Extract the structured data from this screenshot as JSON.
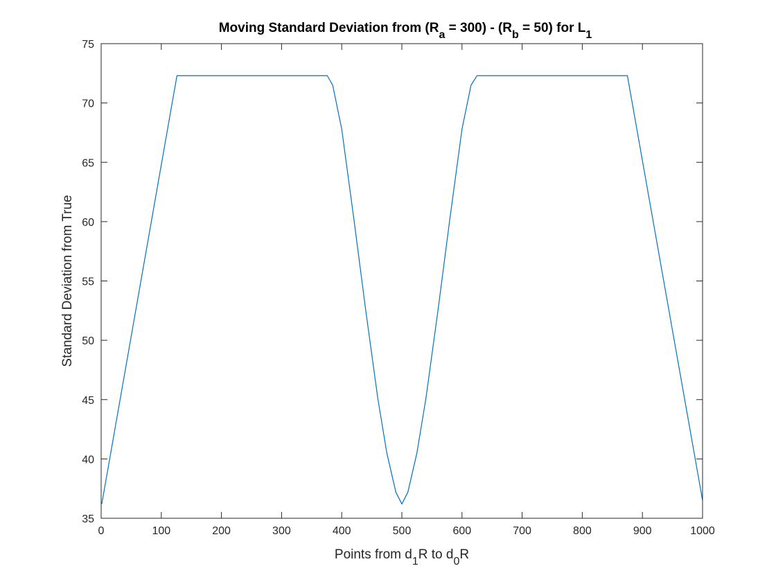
{
  "chart_data": {
    "type": "line",
    "title": {
      "parts": [
        {
          "text": "Moving Standard Deviation from (R",
          "sub": false
        },
        {
          "text": "a",
          "sub": true
        },
        {
          "text": " = 300) - (R",
          "sub": false
        },
        {
          "text": "b",
          "sub": true
        },
        {
          "text": " = 50) for L",
          "sub": false
        },
        {
          "text": "1",
          "sub": true
        }
      ]
    },
    "xlabel": {
      "parts": [
        {
          "text": "Points from d",
          "sub": false
        },
        {
          "text": "1",
          "sub": true
        },
        {
          "text": "R to d",
          "sub": false
        },
        {
          "text": "0",
          "sub": true
        },
        {
          "text": "R",
          "sub": false
        }
      ]
    },
    "ylabel": "Standard Deviation from True",
    "xlim": [
      0,
      1000
    ],
    "ylim": [
      35,
      75
    ],
    "xticks": [
      "0",
      "100",
      "200",
      "300",
      "400",
      "500",
      "600",
      "700",
      "800",
      "900",
      "1000"
    ],
    "yticks": [
      "35",
      "40",
      "45",
      "50",
      "55",
      "60",
      "65",
      "70",
      "75"
    ],
    "grid": false,
    "series": [
      {
        "color": "#0072BD",
        "x": [
          1,
          126,
          376,
          385,
          400,
          420,
          440,
          460,
          475,
          490,
          500,
          510,
          525,
          540,
          560,
          580,
          600,
          615,
          625,
          875,
          1000
        ],
        "y": [
          36.2,
          72.3,
          72.3,
          71.5,
          67.8,
          60.3,
          52.5,
          45.1,
          40.5,
          37.2,
          36.2,
          37.2,
          40.5,
          45.1,
          52.5,
          60.3,
          67.8,
          71.5,
          72.3,
          72.3,
          36.5
        ]
      }
    ]
  }
}
